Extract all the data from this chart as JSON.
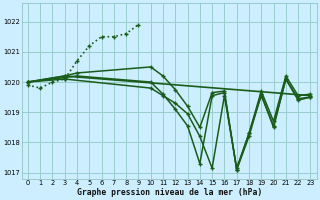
{
  "title": "Graphe pression niveau de la mer (hPa)",
  "bg_color": "#cceeff",
  "grid_color": "#99cccc",
  "line_color": "#1a5c1a",
  "xlim": [
    -0.5,
    23.5
  ],
  "ylim": [
    1016.8,
    1022.6
  ],
  "yticks": [
    1017,
    1018,
    1019,
    1020,
    1021,
    1022
  ],
  "xticks": [
    0,
    1,
    2,
    3,
    4,
    5,
    6,
    7,
    8,
    9,
    10,
    11,
    12,
    13,
    14,
    15,
    16,
    17,
    18,
    19,
    20,
    21,
    22,
    23
  ],
  "series": [
    {
      "x": [
        0,
        1,
        2,
        3,
        4,
        5,
        6,
        7,
        8,
        9
      ],
      "y": [
        1019.9,
        1019.8,
        1020.0,
        1020.1,
        1020.7,
        1021.2,
        1021.5,
        1021.5,
        1021.6,
        1021.9
      ],
      "style": "dotted",
      "linewidth": 1.2,
      "markersize": 2.5
    },
    {
      "x": [
        0,
        3,
        23
      ],
      "y": [
        1020.0,
        1020.2,
        1019.55
      ],
      "style": "solid",
      "linewidth": 1.2,
      "markersize": 2.5
    },
    {
      "x": [
        0,
        3,
        4,
        10,
        11,
        12,
        13,
        14,
        15,
        16,
        17,
        18,
        19,
        20,
        21,
        22,
        23
      ],
      "y": [
        1020.0,
        1020.2,
        1020.3,
        1020.5,
        1020.2,
        1019.75,
        1019.2,
        1018.5,
        1019.65,
        1019.7,
        1017.1,
        1018.3,
        1019.7,
        1018.7,
        1020.2,
        1019.55,
        1019.6
      ],
      "style": "solid",
      "linewidth": 1.1,
      "markersize": 2.5
    },
    {
      "x": [
        0,
        3,
        4,
        10,
        11,
        12,
        13,
        14,
        15,
        16,
        17,
        18,
        19,
        20,
        21,
        22,
        23
      ],
      "y": [
        1020.0,
        1020.15,
        1020.2,
        1020.0,
        1019.6,
        1019.1,
        1018.55,
        1017.3,
        1019.55,
        1019.65,
        1017.1,
        1018.2,
        1019.6,
        1018.5,
        1020.1,
        1019.45,
        1019.5
      ],
      "style": "solid",
      "linewidth": 1.1,
      "markersize": 2.5
    },
    {
      "x": [
        0,
        3,
        10,
        11,
        12,
        13,
        14,
        15,
        16,
        17,
        18,
        19,
        20,
        21,
        22,
        23
      ],
      "y": [
        1020.0,
        1020.1,
        1019.8,
        1019.55,
        1019.3,
        1018.95,
        1018.2,
        1017.15,
        1019.55,
        1017.15,
        1018.3,
        1019.55,
        1018.55,
        1020.1,
        1019.4,
        1019.5
      ],
      "style": "solid",
      "linewidth": 1.1,
      "markersize": 2.5
    }
  ]
}
